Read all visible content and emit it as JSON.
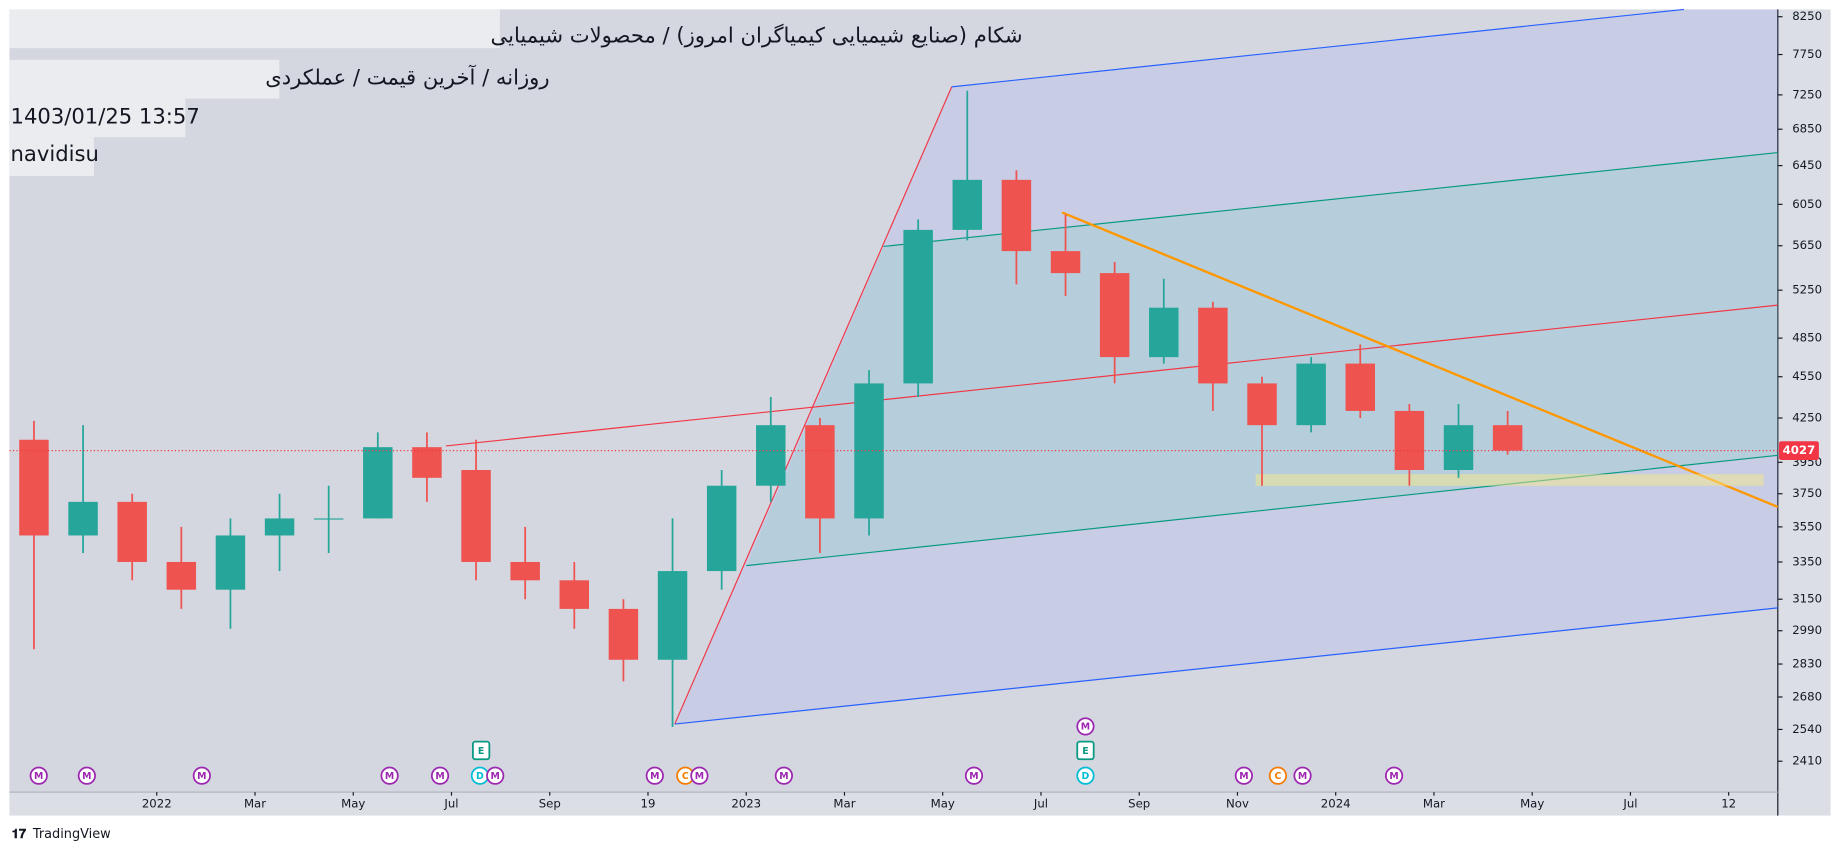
{
  "chart_data": {
    "type": "candlestick",
    "title": "شکام (صنایع شیمیایی کیمیاگران امروز) / محصولات شیمیایی",
    "subtitle": "روزانه / آخرین قیمت / عملکردی",
    "timestamp": "1403/01/25 13:57",
    "author": "navidisu",
    "branding": "TradingView",
    "x": [
      "2021-10",
      "2021-11",
      "2021-12",
      "2022-01",
      "2022-02",
      "2022-03",
      "2022-04",
      "2022-05",
      "2022-06",
      "2022-07",
      "2022-08",
      "2022-09",
      "2022-10",
      "2022-11",
      "2022-12",
      "2023-01",
      "2023-02",
      "2023-03",
      "2023-04",
      "2023-05",
      "2023-06",
      "2023-07",
      "2023-08",
      "2023-09",
      "2023-10",
      "2023-11",
      "2023-12",
      "2024-01",
      "2024-02",
      "2024-03",
      "2024-04"
    ],
    "open": [
      4100,
      3500,
      3700,
      3350,
      3200,
      3500,
      3600,
      3600,
      4050,
      3900,
      3350,
      3250,
      3100,
      2850,
      3300,
      3800,
      4200,
      3600,
      4500,
      5800,
      6300,
      5600,
      5400,
      4700,
      5100,
      4500,
      4200,
      4650,
      4300,
      3900,
      4200
    ],
    "high": [
      4230,
      4200,
      3750,
      3550,
      3600,
      3750,
      3800,
      4150,
      4150,
      4100,
      3550,
      3350,
      3150,
      3600,
      3900,
      4400,
      4250,
      4600,
      5900,
      7300,
      6400,
      5950,
      5500,
      5350,
      5150,
      4550,
      4700,
      4800,
      4350,
      4350,
      4300
    ],
    "low": [
      2900,
      3400,
      3250,
      3100,
      3000,
      3300,
      3400,
      3600,
      3700,
      3250,
      3150,
      3000,
      2750,
      2550,
      3200,
      3700,
      3400,
      3500,
      4400,
      5700,
      5300,
      5200,
      4500,
      4650,
      4300,
      3800,
      4150,
      4250,
      3800,
      3850,
      4000
    ],
    "close": [
      3500,
      3700,
      3350,
      3200,
      3500,
      3600,
      3600,
      4050,
      3850,
      3350,
      3250,
      3100,
      2850,
      3300,
      3800,
      4200,
      3600,
      4500,
      5800,
      6300,
      5600,
      5400,
      4700,
      5100,
      4500,
      4200,
      4650,
      4300,
      3900,
      4200,
      4027
    ],
    "up_color": "#26a69a",
    "down_color": "#ef5350",
    "log_scale": true,
    "ylim": [
      2290,
      8350
    ],
    "yticks": [
      8250,
      7750,
      7250,
      6850,
      6450,
      6050,
      5650,
      5250,
      4850,
      4550,
      4250,
      3950,
      3750,
      3550,
      3350,
      3150,
      2990,
      2830,
      2680,
      2540,
      2410
    ],
    "xlim": [
      "2021-10",
      "2024-10"
    ],
    "xticks": [
      {
        "value": "2022-01",
        "label": "2022"
      },
      {
        "value": "2022-03",
        "label": "Mar"
      },
      {
        "value": "2022-05",
        "label": "May"
      },
      {
        "value": "2022-07",
        "label": "Jul"
      },
      {
        "value": "2022-09",
        "label": "Sep"
      },
      {
        "value": "2022-11",
        "label": "19"
      },
      {
        "value": "2023-01",
        "label": "2023"
      },
      {
        "value": "2023-03",
        "label": "Mar"
      },
      {
        "value": "2023-05",
        "label": "May"
      },
      {
        "value": "2023-07",
        "label": "Jul"
      },
      {
        "value": "2023-09",
        "label": "Sep"
      },
      {
        "value": "2023-11",
        "label": "Nov"
      },
      {
        "value": "2024-01",
        "label": "2024"
      },
      {
        "value": "2024-03",
        "label": "Mar"
      },
      {
        "value": "2024-05",
        "label": "May"
      },
      {
        "value": "2024-07",
        "label": "Jul"
      },
      {
        "value": "2024-09",
        "label": "12"
      }
    ],
    "last_price": 4027,
    "last_price_color": "#f23645",
    "events": [
      "M",
      "M",
      "M",
      "M",
      "M",
      "D",
      "E",
      "M",
      "M",
      "C",
      "M",
      "M",
      "M",
      "M",
      "E",
      "D",
      "M",
      "C",
      "M",
      "M"
    ]
  }
}
